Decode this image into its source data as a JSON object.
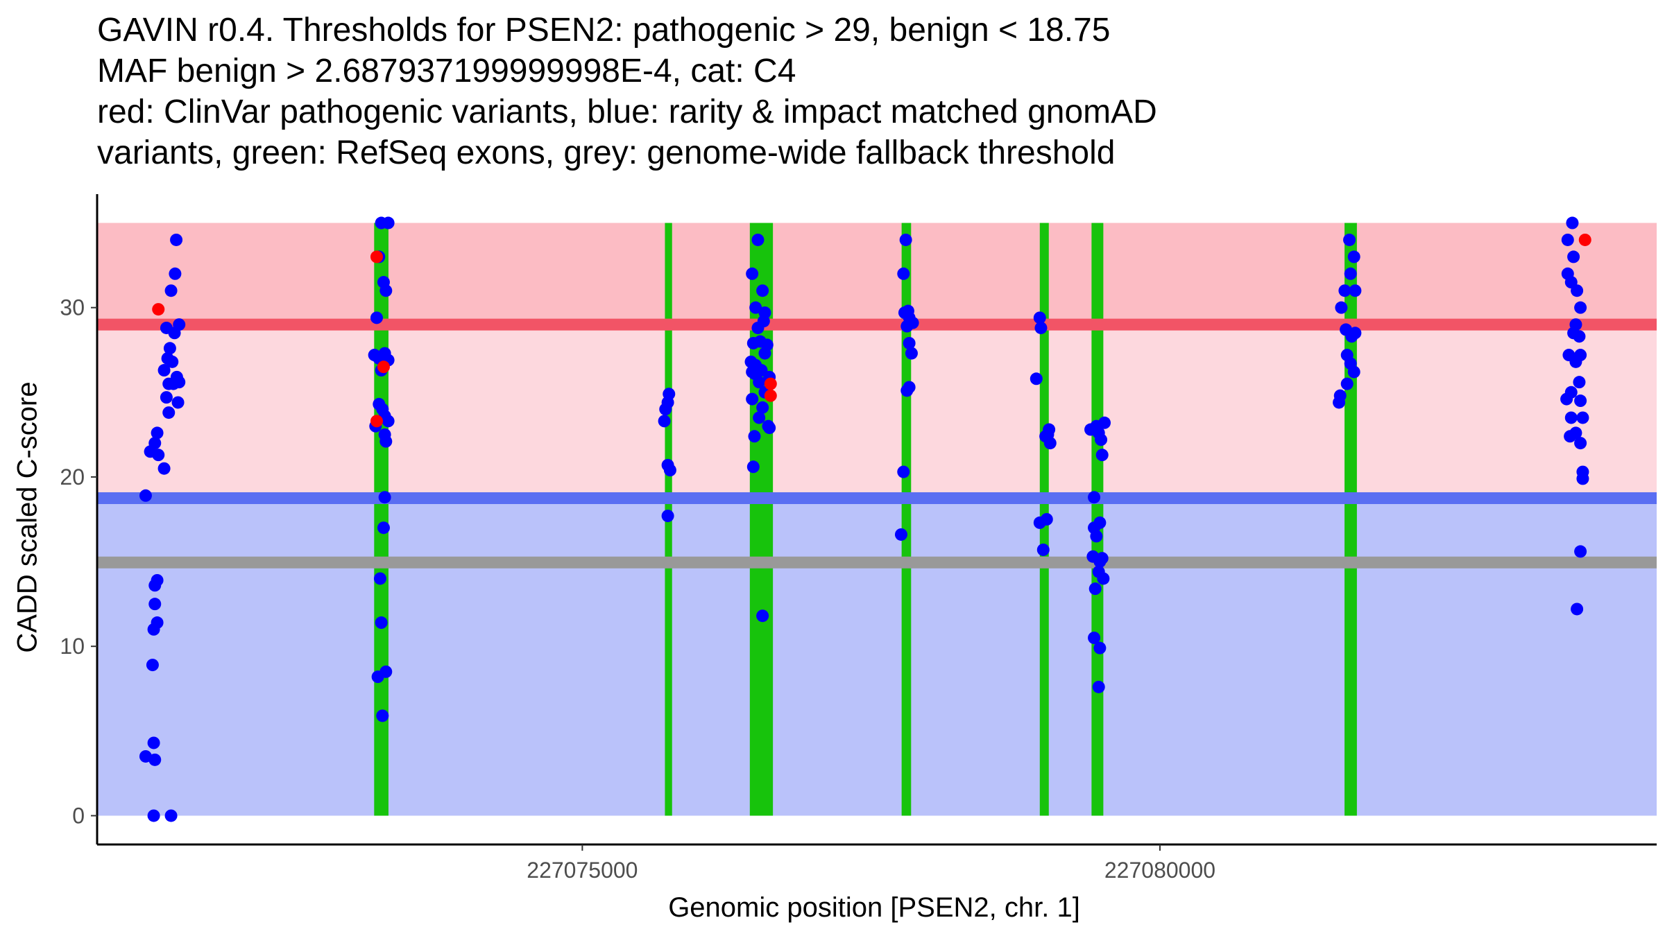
{
  "title": {
    "lines": [
      "GAVIN r0.4. Thresholds for PSEN2: pathogenic > 29, benign < 18.75",
      "MAF benign > 2.687937199999998E-4, cat: C4",
      "red: ClinVar pathogenic variants, blue: rarity & impact matched gnomAD",
      "variants, green: RefSeq exons, grey: genome-wide fallback threshold"
    ]
  },
  "colors": {
    "pathogenic_band": "#fcbcc4",
    "uncertain_band": "#fdd8de",
    "benign_band": "#bac2fa",
    "pathogenic_line": "#f25466",
    "benign_line": "#5a6ef2",
    "fallback_line": "#999999",
    "exon": "#17c30c",
    "gnomad_point": "#0000ff",
    "clinvar_point": "#ff0000"
  },
  "chart_data": {
    "type": "scatter",
    "xlabel": "Genomic position [PSEN2, chr. 1]",
    "ylabel": "CADD scaled C-score",
    "xlim": [
      227070800,
      227084300
    ],
    "ylim": [
      -1.7,
      36.7
    ],
    "xticks": [
      227075000,
      227080000
    ],
    "xtick_labels": [
      "227075000",
      "227080000"
    ],
    "yticks": [
      0,
      10,
      20,
      30
    ],
    "ytick_labels": [
      "0",
      "10",
      "20",
      "30"
    ],
    "thresholds": {
      "pathogenic": 29,
      "benign": 18.75,
      "fallback": 14.95,
      "band_top": 35
    },
    "exons": [
      [
        227073198,
        227073322
      ],
      [
        227075715,
        227075777
      ],
      [
        227076450,
        227076650
      ],
      [
        227077764,
        227077846
      ],
      [
        227078960,
        227079038
      ],
      [
        227079408,
        227079510
      ],
      [
        227081598,
        227081705
      ]
    ],
    "series": [
      {
        "name": "gnomAD matched variants",
        "points": [
          [
            227071485,
            34
          ],
          [
            227071475,
            32
          ],
          [
            227071440,
            31
          ],
          [
            227071510,
            29
          ],
          [
            227071400,
            28.8
          ],
          [
            227071470,
            28.5
          ],
          [
            227071430,
            27.6
          ],
          [
            227071410,
            27
          ],
          [
            227071450,
            26.8
          ],
          [
            227071380,
            26.3
          ],
          [
            227071490,
            25.9
          ],
          [
            227071420,
            25.5
          ],
          [
            227071460,
            25.5
          ],
          [
            227071510,
            25.6
          ],
          [
            227071400,
            24.7
          ],
          [
            227071500,
            24.4
          ],
          [
            227071420,
            23.8
          ],
          [
            227071320,
            22.6
          ],
          [
            227071300,
            22
          ],
          [
            227071260,
            21.5
          ],
          [
            227071330,
            21.3
          ],
          [
            227071380,
            20.5
          ],
          [
            227071220,
            18.9
          ],
          [
            227071320,
            13.9
          ],
          [
            227071300,
            13.6
          ],
          [
            227071300,
            12.5
          ],
          [
            227071320,
            11.4
          ],
          [
            227071290,
            11
          ],
          [
            227071280,
            8.9
          ],
          [
            227071290,
            4.3
          ],
          [
            227071220,
            3.5
          ],
          [
            227071300,
            3.3
          ],
          [
            227071290,
            0
          ],
          [
            227071440,
            0
          ],
          [
            227073260,
            35
          ],
          [
            227073320,
            35
          ],
          [
            227073240,
            33
          ],
          [
            227073280,
            31.5
          ],
          [
            227073300,
            31
          ],
          [
            227073220,
            29.4
          ],
          [
            227073200,
            27.2
          ],
          [
            227073290,
            27.3
          ],
          [
            227073320,
            26.9
          ],
          [
            227073240,
            27
          ],
          [
            227073260,
            26.3
          ],
          [
            227073240,
            24.3
          ],
          [
            227073270,
            24
          ],
          [
            227073290,
            23.6
          ],
          [
            227073320,
            23.3
          ],
          [
            227073210,
            23
          ],
          [
            227073290,
            22.5
          ],
          [
            227073300,
            22.1
          ],
          [
            227073290,
            18.8
          ],
          [
            227073280,
            17
          ],
          [
            227073250,
            14
          ],
          [
            227073260,
            11.4
          ],
          [
            227073300,
            8.5
          ],
          [
            227073230,
            8.2
          ],
          [
            227073270,
            5.9
          ],
          [
            227075750,
            24.9
          ],
          [
            227075740,
            24.4
          ],
          [
            227075720,
            24
          ],
          [
            227075710,
            23.3
          ],
          [
            227075740,
            20.7
          ],
          [
            227075760,
            20.4
          ],
          [
            227075740,
            17.7
          ],
          [
            227076520,
            34
          ],
          [
            227076470,
            32
          ],
          [
            227076560,
            31
          ],
          [
            227076500,
            30
          ],
          [
            227076580,
            29.7
          ],
          [
            227076570,
            29.2
          ],
          [
            227076520,
            28.8
          ],
          [
            227076540,
            28
          ],
          [
            227076480,
            27.9
          ],
          [
            227076600,
            27.8
          ],
          [
            227076580,
            27.3
          ],
          [
            227076460,
            26.8
          ],
          [
            227076500,
            26.6
          ],
          [
            227076550,
            26.3
          ],
          [
            227076470,
            26.2
          ],
          [
            227076490,
            26.1
          ],
          [
            227076620,
            25.9
          ],
          [
            227076530,
            25.6
          ],
          [
            227076580,
            25
          ],
          [
            227076470,
            24.6
          ],
          [
            227076560,
            24.1
          ],
          [
            227076530,
            23.5
          ],
          [
            227076610,
            23
          ],
          [
            227076620,
            22.9
          ],
          [
            227076490,
            22.4
          ],
          [
            227076480,
            20.6
          ],
          [
            227076560,
            11.8
          ],
          [
            227077800,
            34
          ],
          [
            227077780,
            32
          ],
          [
            227077820,
            29.8
          ],
          [
            227077790,
            29.7
          ],
          [
            227077830,
            29.4
          ],
          [
            227077860,
            29.1
          ],
          [
            227077810,
            28.9
          ],
          [
            227077830,
            27.9
          ],
          [
            227077850,
            27.3
          ],
          [
            227077830,
            25.3
          ],
          [
            227077810,
            25.1
          ],
          [
            227077780,
            20.3
          ],
          [
            227077760,
            16.6
          ],
          [
            227078960,
            29.4
          ],
          [
            227078970,
            28.8
          ],
          [
            227078930,
            25.8
          ],
          [
            227079040,
            22.8
          ],
          [
            227079030,
            22.5
          ],
          [
            227079010,
            22.4
          ],
          [
            227079050,
            22
          ],
          [
            227078960,
            17.3
          ],
          [
            227079020,
            17.5
          ],
          [
            227078990,
            15.7
          ],
          [
            227079450,
            23
          ],
          [
            227079520,
            23.2
          ],
          [
            227079400,
            22.8
          ],
          [
            227079470,
            22.6
          ],
          [
            227079490,
            22.2
          ],
          [
            227079500,
            21.3
          ],
          [
            227079430,
            18.8
          ],
          [
            227079480,
            17.3
          ],
          [
            227079430,
            17
          ],
          [
            227079450,
            16.5
          ],
          [
            227079420,
            15.3
          ],
          [
            227079500,
            15.2
          ],
          [
            227079480,
            15
          ],
          [
            227079470,
            14.4
          ],
          [
            227079510,
            14
          ],
          [
            227079440,
            13.4
          ],
          [
            227079430,
            10.5
          ],
          [
            227079480,
            9.9
          ],
          [
            227079470,
            7.6
          ],
          [
            227081640,
            34
          ],
          [
            227081600,
            31
          ],
          [
            227081690,
            31
          ],
          [
            227081650,
            32
          ],
          [
            227081680,
            33
          ],
          [
            227081570,
            30
          ],
          [
            227081610,
            28.7
          ],
          [
            227081690,
            28.5
          ],
          [
            227081660,
            28.3
          ],
          [
            227081620,
            27.2
          ],
          [
            227081650,
            26.7
          ],
          [
            227081680,
            26.2
          ],
          [
            227081620,
            25.5
          ],
          [
            227081560,
            24.8
          ],
          [
            227081550,
            24.4
          ],
          [
            227083570,
            35
          ],
          [
            227083530,
            34
          ],
          [
            227083580,
            33
          ],
          [
            227083530,
            32
          ],
          [
            227083560,
            31.5
          ],
          [
            227083610,
            31
          ],
          [
            227083640,
            30
          ],
          [
            227083600,
            29
          ],
          [
            227083580,
            28.5
          ],
          [
            227083630,
            28.3
          ],
          [
            227083540,
            27.2
          ],
          [
            227083640,
            27.2
          ],
          [
            227083600,
            26.8
          ],
          [
            227083630,
            25.6
          ],
          [
            227083560,
            25
          ],
          [
            227083520,
            24.6
          ],
          [
            227083640,
            24.5
          ],
          [
            227083560,
            23.5
          ],
          [
            227083660,
            23.5
          ],
          [
            227083550,
            22.4
          ],
          [
            227083600,
            22.6
          ],
          [
            227083640,
            22
          ],
          [
            227083660,
            20.3
          ],
          [
            227083660,
            19.9
          ],
          [
            227083640,
            15.6
          ],
          [
            227083610,
            12.2
          ]
        ]
      },
      {
        "name": "ClinVar pathogenic variants",
        "points": [
          [
            227071330,
            29.9
          ],
          [
            227073220,
            33
          ],
          [
            227073280,
            26.5
          ],
          [
            227073220,
            23.3
          ],
          [
            227076630,
            25.5
          ],
          [
            227076630,
            24.8
          ],
          [
            227083680,
            34
          ]
        ]
      }
    ]
  }
}
